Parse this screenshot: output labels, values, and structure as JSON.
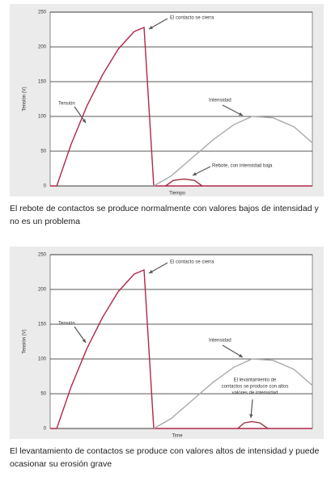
{
  "chart_data": [
    {
      "type": "line",
      "ylabel": "Tensión (V)",
      "xlabel": "Tiempo",
      "ylim": [
        0,
        250
      ],
      "yticks": [
        0,
        50,
        100,
        150,
        200,
        250
      ],
      "xlim": [
        0,
        100
      ],
      "grid": true,
      "series": [
        {
          "color": "#b0284a",
          "x": [
            0,
            2.5,
            8,
            14,
            20,
            26,
            32,
            35.8,
            39.5,
            100
          ],
          "values": [
            0,
            0,
            60,
            115,
            160,
            197,
            222,
            228,
            0,
            0
          ]
        },
        {
          "color": "#aaaaaa",
          "x": [
            39.5,
            46,
            54,
            62,
            70,
            77,
            85,
            93,
            100
          ],
          "values": [
            0,
            14,
            40,
            66,
            88,
            100,
            98,
            85,
            62
          ]
        },
        {
          "color": "#a03040",
          "x": [
            44,
            47,
            51,
            55,
            58
          ],
          "values": [
            0,
            8,
            10,
            8,
            0
          ]
        }
      ],
      "annotations": [
        {
          "text": "El contacto se cierra"
        },
        {
          "text": "Tensión"
        },
        {
          "text": "Intensidad"
        },
        {
          "text": "Rebote, con intensidad baja"
        }
      ],
      "caption": "El rebote de contactos se produce normalmente con valores bajos de intensidad y no es un problema"
    },
    {
      "type": "line",
      "ylabel": "Tensión (V)",
      "xlabel": "Time",
      "ylim": [
        0,
        250
      ],
      "yticks": [
        0,
        50,
        100,
        150,
        200,
        250
      ],
      "xlim": [
        0,
        100
      ],
      "grid": true,
      "series": [
        {
          "color": "#b0284a",
          "x": [
            0,
            2.5,
            8,
            14,
            20,
            26,
            32,
            35.8,
            39.5,
            100
          ],
          "values": [
            0,
            0,
            60,
            115,
            160,
            197,
            222,
            228,
            0,
            0
          ]
        },
        {
          "color": "#aaaaaa",
          "x": [
            39.5,
            46,
            54,
            62,
            70,
            77,
            85,
            93,
            100
          ],
          "values": [
            0,
            14,
            40,
            66,
            88,
            100,
            98,
            85,
            62
          ]
        },
        {
          "color": "#a03040",
          "x": [
            71.5,
            74,
            77,
            80,
            83
          ],
          "values": [
            0,
            8,
            10,
            8,
            0
          ]
        }
      ],
      "annotations": [
        {
          "text": "El contacto se cierra"
        },
        {
          "text": "Tensión"
        },
        {
          "text": "Intensidad"
        },
        {
          "text": [
            "El levantamiento de",
            "contactos se produce con altos",
            "valores de intensidad"
          ]
        }
      ],
      "caption": "El levantamiento de contactos se produce con valores altos de intensidad y puede ocasionar su erosión grave"
    }
  ]
}
